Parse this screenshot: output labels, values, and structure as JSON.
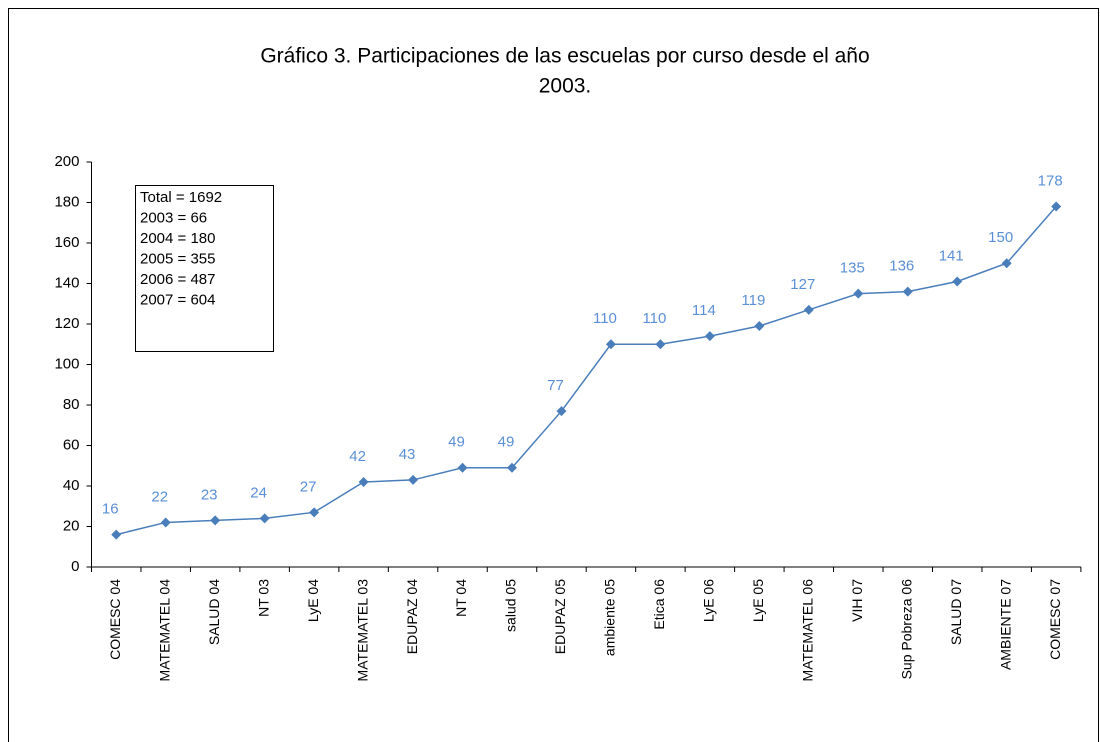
{
  "chart_data": {
    "type": "line",
    "title": [
      "Gráfico 3. Participaciones de las escuelas por curso desde el año",
      "2003."
    ],
    "categories": [
      "COMESC 04",
      "MATEMATEL 04",
      "SALUD 04",
      "NT 03",
      "LyE 04",
      "MATEMATEL 03",
      "EDUPAZ 04",
      "NT 04",
      "salud 05",
      "EDUPAZ 05",
      "ambiente 05",
      "Etica 06",
      "LyE 06",
      "LyE 05",
      "MATEMATEL 06",
      "VIH 07",
      "Sup Pobreza 06",
      "SALUD 07",
      "AMBIENTE 07",
      "COMESC 07"
    ],
    "values": [
      16,
      22,
      23,
      24,
      27,
      42,
      43,
      49,
      49,
      77,
      110,
      110,
      114,
      119,
      127,
      135,
      136,
      141,
      150,
      178
    ],
    "color": "#4a7ebb",
    "label_color": "#5b8fd6",
    "ylim": [
      0,
      200
    ],
    "yticks": [
      0,
      20,
      40,
      60,
      80,
      100,
      120,
      140,
      160,
      180,
      200
    ],
    "grid": false,
    "annotation_lines": [
      "Total = 1692",
      "2003 = 66",
      "2004 = 180",
      "2005 = 355",
      "2006 = 487",
      "2007 = 604"
    ]
  }
}
